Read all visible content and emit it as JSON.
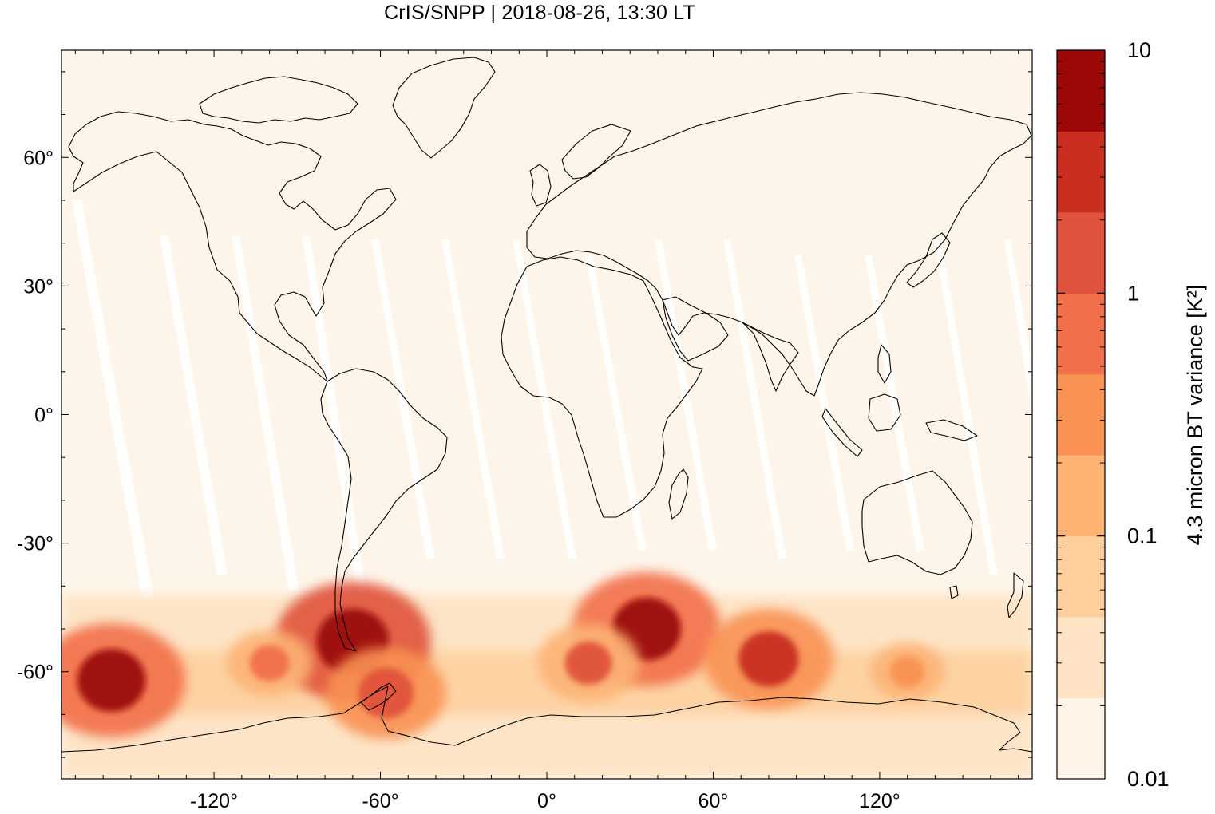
{
  "title": "CrIS/SNPP | 2018-08-26, 13:30 LT",
  "map": {
    "projection": "equirectangular",
    "lon_range": [
      -175,
      175
    ],
    "lat_range": [
      -85,
      85
    ],
    "lon_ticks": [
      {
        "value": -120,
        "label": "-120°"
      },
      {
        "value": -60,
        "label": "-60°"
      },
      {
        "value": 0,
        "label": "0°"
      },
      {
        "value": 60,
        "label": "60°"
      },
      {
        "value": 120,
        "label": "120°"
      }
    ],
    "lat_ticks": [
      {
        "value": 60,
        "label": "60°"
      },
      {
        "value": 30,
        "label": "30°"
      },
      {
        "value": 0,
        "label": "0°"
      },
      {
        "value": -30,
        "label": "-30°"
      },
      {
        "value": -60,
        "label": "-60°"
      }
    ],
    "background_color": "#fef5ea",
    "swath_gap_color": "#ffffff",
    "coastline_color": "#000000"
  },
  "colorbar": {
    "label": "4.3 micron BT variance [K²]",
    "scale": "log",
    "range": [
      0.01,
      10
    ],
    "tick_labels": [
      {
        "value": 10,
        "label": "10"
      },
      {
        "value": 1,
        "label": "1"
      },
      {
        "value": 0.1,
        "label": "0.1"
      },
      {
        "value": 0.01,
        "label": "0.01"
      }
    ],
    "colors": [
      "#fef3e6",
      "#fde3c3",
      "#fdcf9c",
      "#fcb374",
      "#f99253",
      "#f27049",
      "#e0523b",
      "#c92e20",
      "#9c0707"
    ]
  },
  "chart_data": {
    "type": "heatmap",
    "title": "CrIS/SNPP | 2018-08-26, 13:30 LT",
    "xlabel": "",
    "ylabel": "",
    "colorbar_label": "4.3 micron BT variance [K²]",
    "x_range": [
      -175,
      175
    ],
    "y_range": [
      -85,
      85
    ],
    "value_range": [
      0.01,
      10
    ],
    "scale": "log",
    "hotspots": [
      {
        "lon": -70,
        "lat": -53,
        "value": 8
      },
      {
        "lon": -157,
        "lat": -62,
        "value": 6
      },
      {
        "lon": 36,
        "lat": -50,
        "value": 6
      },
      {
        "lon": 80,
        "lat": -57,
        "value": 3
      },
      {
        "lon": -58,
        "lat": -65,
        "value": 2
      },
      {
        "lon": 15,
        "lat": -58,
        "value": 1
      },
      {
        "lon": -100,
        "lat": -58,
        "value": 0.5
      },
      {
        "lon": 130,
        "lat": -60,
        "value": 0.3
      }
    ]
  }
}
